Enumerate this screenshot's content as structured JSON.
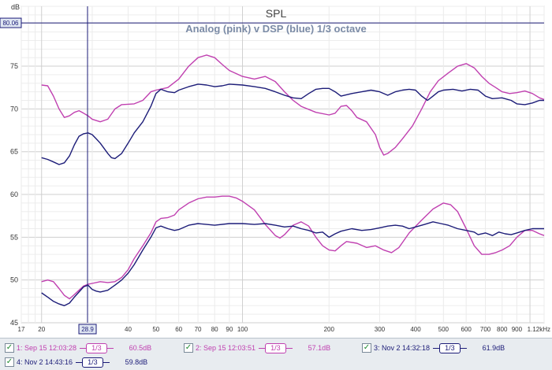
{
  "chart_data": {
    "type": "line",
    "title": "SPL",
    "subtitle": "Analog (pink) v DSP (blue) 1/3 octave",
    "ylabel": "dB",
    "xscale": "log",
    "xlim": [
      17,
      1120
    ],
    "ylim": [
      45,
      82
    ],
    "grid": true,
    "cursor": {
      "x_label": "28.9",
      "y_label": "80.06",
      "x": 28.9,
      "y": 80.06
    },
    "x_ticks": [
      {
        "v": 17,
        "t": "17"
      },
      {
        "v": 20,
        "t": "20"
      },
      {
        "v": 28.9,
        "t": "28.9"
      },
      {
        "v": 40,
        "t": "40"
      },
      {
        "v": 50,
        "t": "50"
      },
      {
        "v": 60,
        "t": "60"
      },
      {
        "v": 70,
        "t": "70"
      },
      {
        "v": 80,
        "t": "80"
      },
      {
        "v": 90,
        "t": "90"
      },
      {
        "v": 100,
        "t": "100"
      },
      {
        "v": 200,
        "t": "200"
      },
      {
        "v": 300,
        "t": "300"
      },
      {
        "v": 400,
        "t": "400"
      },
      {
        "v": 500,
        "t": "500"
      },
      {
        "v": 600,
        "t": "600"
      },
      {
        "v": 700,
        "t": "700"
      },
      {
        "v": 800,
        "t": "800"
      },
      {
        "v": 900,
        "t": "900"
      },
      {
        "v": 1120,
        "t": "1.12kHz"
      }
    ],
    "y_ticks": [
      45,
      50,
      55,
      60,
      65,
      70,
      75
    ],
    "series": [
      {
        "color": "#c040b0",
        "points": [
          [
            20,
            72.8
          ],
          [
            21,
            72.7
          ],
          [
            22,
            71.5
          ],
          [
            23,
            70.0
          ],
          [
            24,
            69.0
          ],
          [
            25,
            69.2
          ],
          [
            26,
            69.6
          ],
          [
            27,
            69.8
          ],
          [
            28,
            69.5
          ],
          [
            29,
            69.2
          ],
          [
            30,
            68.8
          ],
          [
            32,
            68.5
          ],
          [
            34,
            68.8
          ],
          [
            36,
            70.0
          ],
          [
            38,
            70.5
          ],
          [
            42,
            70.6
          ],
          [
            45,
            71.0
          ],
          [
            48,
            72.0
          ],
          [
            50,
            72.2
          ],
          [
            55,
            72.5
          ],
          [
            60,
            73.5
          ],
          [
            65,
            75.0
          ],
          [
            70,
            76.0
          ],
          [
            75,
            76.3
          ],
          [
            80,
            76.0
          ],
          [
            85,
            75.2
          ],
          [
            90,
            74.5
          ],
          [
            100,
            73.8
          ],
          [
            110,
            73.5
          ],
          [
            120,
            73.8
          ],
          [
            130,
            73.2
          ],
          [
            140,
            72.0
          ],
          [
            150,
            71.0
          ],
          [
            160,
            70.3
          ],
          [
            180,
            69.6
          ],
          [
            200,
            69.3
          ],
          [
            210,
            69.5
          ],
          [
            220,
            70.3
          ],
          [
            230,
            70.4
          ],
          [
            240,
            69.8
          ],
          [
            250,
            69.0
          ],
          [
            270,
            68.5
          ],
          [
            290,
            67.0
          ],
          [
            300,
            65.5
          ],
          [
            310,
            64.6
          ],
          [
            320,
            64.8
          ],
          [
            340,
            65.5
          ],
          [
            360,
            66.5
          ],
          [
            390,
            68.0
          ],
          [
            420,
            70.0
          ],
          [
            450,
            72.0
          ],
          [
            480,
            73.3
          ],
          [
            520,
            74.2
          ],
          [
            560,
            75.0
          ],
          [
            600,
            75.3
          ],
          [
            640,
            74.8
          ],
          [
            680,
            73.8
          ],
          [
            720,
            73.0
          ],
          [
            760,
            72.5
          ],
          [
            800,
            72.0
          ],
          [
            850,
            71.8
          ],
          [
            900,
            71.9
          ],
          [
            960,
            72.1
          ],
          [
            1020,
            71.8
          ],
          [
            1080,
            71.3
          ],
          [
            1120,
            71.1
          ]
        ]
      },
      {
        "color": "#c040b0",
        "points": [
          [
            20,
            49.8
          ],
          [
            21,
            50.0
          ],
          [
            22,
            49.8
          ],
          [
            23,
            49.0
          ],
          [
            24,
            48.2
          ],
          [
            25,
            47.8
          ],
          [
            26,
            48.3
          ],
          [
            27,
            48.8
          ],
          [
            28,
            49.3
          ],
          [
            29,
            49.5
          ],
          [
            30,
            49.6
          ],
          [
            32,
            49.8
          ],
          [
            34,
            49.7
          ],
          [
            36,
            49.8
          ],
          [
            38,
            50.3
          ],
          [
            40,
            51.2
          ],
          [
            42,
            52.5
          ],
          [
            45,
            54.0
          ],
          [
            48,
            55.5
          ],
          [
            50,
            56.8
          ],
          [
            52,
            57.2
          ],
          [
            55,
            57.3
          ],
          [
            58,
            57.6
          ],
          [
            60,
            58.2
          ],
          [
            65,
            59.0
          ],
          [
            70,
            59.5
          ],
          [
            75,
            59.7
          ],
          [
            80,
            59.7
          ],
          [
            85,
            59.8
          ],
          [
            90,
            59.8
          ],
          [
            95,
            59.6
          ],
          [
            100,
            59.2
          ],
          [
            110,
            58.2
          ],
          [
            120,
            56.5
          ],
          [
            130,
            55.2
          ],
          [
            135,
            54.9
          ],
          [
            140,
            55.3
          ],
          [
            150,
            56.4
          ],
          [
            160,
            56.8
          ],
          [
            170,
            56.3
          ],
          [
            180,
            55.0
          ],
          [
            190,
            54.0
          ],
          [
            200,
            53.5
          ],
          [
            210,
            53.4
          ],
          [
            220,
            54.0
          ],
          [
            230,
            54.5
          ],
          [
            250,
            54.3
          ],
          [
            270,
            53.8
          ],
          [
            290,
            54.0
          ],
          [
            310,
            53.5
          ],
          [
            330,
            53.2
          ],
          [
            350,
            53.8
          ],
          [
            380,
            55.5
          ],
          [
            420,
            57.0
          ],
          [
            460,
            58.3
          ],
          [
            500,
            59.0
          ],
          [
            530,
            58.8
          ],
          [
            560,
            58.0
          ],
          [
            600,
            56.0
          ],
          [
            640,
            54.0
          ],
          [
            680,
            53.0
          ],
          [
            720,
            53.0
          ],
          [
            760,
            53.2
          ],
          [
            800,
            53.5
          ],
          [
            850,
            54.0
          ],
          [
            900,
            55.0
          ],
          [
            960,
            55.8
          ],
          [
            1020,
            55.8
          ],
          [
            1080,
            55.4
          ],
          [
            1120,
            55.2
          ]
        ]
      },
      {
        "color": "#1c1c78",
        "points": [
          [
            20,
            64.3
          ],
          [
            21,
            64.1
          ],
          [
            22,
            63.8
          ],
          [
            23,
            63.5
          ],
          [
            24,
            63.7
          ],
          [
            25,
            64.5
          ],
          [
            26,
            65.8
          ],
          [
            27,
            66.8
          ],
          [
            28,
            67.1
          ],
          [
            29,
            67.2
          ],
          [
            30,
            67.0
          ],
          [
            31,
            66.5
          ],
          [
            32,
            66.0
          ],
          [
            34,
            64.8
          ],
          [
            35,
            64.3
          ],
          [
            36,
            64.2
          ],
          [
            38,
            64.8
          ],
          [
            40,
            66.0
          ],
          [
            42,
            67.2
          ],
          [
            45,
            68.5
          ],
          [
            48,
            70.3
          ],
          [
            50,
            71.8
          ],
          [
            52,
            72.3
          ],
          [
            55,
            72.0
          ],
          [
            58,
            71.9
          ],
          [
            60,
            72.2
          ],
          [
            65,
            72.6
          ],
          [
            70,
            72.9
          ],
          [
            75,
            72.8
          ],
          [
            80,
            72.6
          ],
          [
            85,
            72.7
          ],
          [
            90,
            72.9
          ],
          [
            100,
            72.8
          ],
          [
            110,
            72.6
          ],
          [
            120,
            72.4
          ],
          [
            130,
            72.0
          ],
          [
            140,
            71.6
          ],
          [
            150,
            71.3
          ],
          [
            160,
            71.2
          ],
          [
            170,
            71.8
          ],
          [
            180,
            72.3
          ],
          [
            190,
            72.4
          ],
          [
            200,
            72.4
          ],
          [
            210,
            72.0
          ],
          [
            220,
            71.5
          ],
          [
            240,
            71.8
          ],
          [
            260,
            72.0
          ],
          [
            280,
            72.2
          ],
          [
            300,
            72.0
          ],
          [
            320,
            71.6
          ],
          [
            340,
            72.0
          ],
          [
            360,
            72.2
          ],
          [
            380,
            72.3
          ],
          [
            400,
            72.2
          ],
          [
            420,
            71.5
          ],
          [
            440,
            71.0
          ],
          [
            460,
            71.5
          ],
          [
            480,
            72.0
          ],
          [
            500,
            72.2
          ],
          [
            540,
            72.3
          ],
          [
            580,
            72.1
          ],
          [
            620,
            72.3
          ],
          [
            660,
            72.2
          ],
          [
            700,
            71.5
          ],
          [
            740,
            71.2
          ],
          [
            800,
            71.3
          ],
          [
            860,
            71.0
          ],
          [
            900,
            70.6
          ],
          [
            960,
            70.5
          ],
          [
            1020,
            70.7
          ],
          [
            1080,
            71.0
          ],
          [
            1120,
            71.0
          ]
        ]
      },
      {
        "color": "#1c1c78",
        "points": [
          [
            20,
            48.5
          ],
          [
            21,
            48.0
          ],
          [
            22,
            47.5
          ],
          [
            23,
            47.2
          ],
          [
            24,
            47.0
          ],
          [
            25,
            47.3
          ],
          [
            26,
            48.0
          ],
          [
            27,
            48.6
          ],
          [
            28,
            49.2
          ],
          [
            29,
            49.4
          ],
          [
            30,
            48.9
          ],
          [
            31,
            48.7
          ],
          [
            32,
            48.6
          ],
          [
            34,
            48.8
          ],
          [
            36,
            49.4
          ],
          [
            38,
            50.0
          ],
          [
            40,
            50.8
          ],
          [
            42,
            51.8
          ],
          [
            45,
            53.5
          ],
          [
            48,
            55.0
          ],
          [
            50,
            56.1
          ],
          [
            52,
            56.3
          ],
          [
            55,
            56.0
          ],
          [
            58,
            55.8
          ],
          [
            60,
            55.9
          ],
          [
            65,
            56.4
          ],
          [
            70,
            56.6
          ],
          [
            75,
            56.5
          ],
          [
            80,
            56.4
          ],
          [
            90,
            56.6
          ],
          [
            100,
            56.6
          ],
          [
            110,
            56.5
          ],
          [
            120,
            56.6
          ],
          [
            130,
            56.4
          ],
          [
            140,
            56.2
          ],
          [
            150,
            56.3
          ],
          [
            160,
            56.0
          ],
          [
            170,
            55.8
          ],
          [
            180,
            55.5
          ],
          [
            190,
            55.6
          ],
          [
            200,
            55.0
          ],
          [
            210,
            55.4
          ],
          [
            220,
            55.7
          ],
          [
            240,
            56.0
          ],
          [
            260,
            55.8
          ],
          [
            280,
            55.9
          ],
          [
            300,
            56.1
          ],
          [
            320,
            56.3
          ],
          [
            340,
            56.4
          ],
          [
            360,
            56.3
          ],
          [
            380,
            56.0
          ],
          [
            400,
            56.2
          ],
          [
            430,
            56.5
          ],
          [
            460,
            56.8
          ],
          [
            490,
            56.6
          ],
          [
            520,
            56.4
          ],
          [
            560,
            56.0
          ],
          [
            600,
            55.8
          ],
          [
            640,
            55.6
          ],
          [
            660,
            55.3
          ],
          [
            700,
            55.5
          ],
          [
            740,
            55.2
          ],
          [
            780,
            55.6
          ],
          [
            820,
            55.4
          ],
          [
            860,
            55.3
          ],
          [
            900,
            55.5
          ],
          [
            960,
            55.8
          ],
          [
            1020,
            56.0
          ],
          [
            1080,
            56.0
          ],
          [
            1120,
            56.0
          ]
        ]
      }
    ]
  },
  "legend": [
    {
      "label": "1: Sep 15 12:03:28",
      "smoothing": "1/3",
      "value": "60.5dB",
      "color": "#c040b0"
    },
    {
      "label": "2: Sep 15 12:03:51",
      "smoothing": "1/3",
      "value": "57.1dB",
      "color": "#c040b0"
    },
    {
      "label": "3: Nov 2 14:32:18",
      "smoothing": "1/3",
      "value": "61.9dB",
      "color": "#1c1c78"
    },
    {
      "label": "4: Nov 2 14:43:16",
      "smoothing": "1/3",
      "value": "59.8dB",
      "color": "#1c1c78"
    }
  ]
}
